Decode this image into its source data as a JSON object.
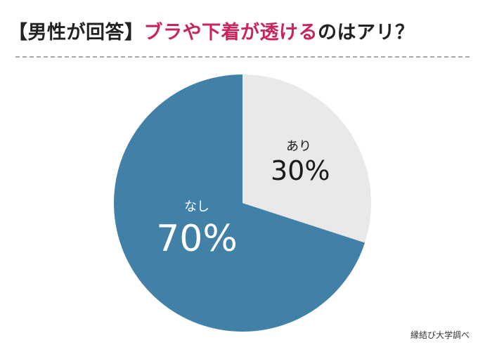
{
  "title": {
    "prefix": "【男性が回答】",
    "highlight": "ブラや下着が透ける",
    "suffix": "のはアリ？"
  },
  "chart_data": {
    "type": "pie",
    "title": "【男性が回答】ブラや下着が透けるのはアリ？",
    "categories": [
      "あり",
      "なし"
    ],
    "values": [
      30,
      70
    ],
    "value_labels": [
      "30%",
      "70%"
    ],
    "colors": [
      "#e9e9e9",
      "#4181a8"
    ]
  },
  "source": "縁結び大学調べ"
}
